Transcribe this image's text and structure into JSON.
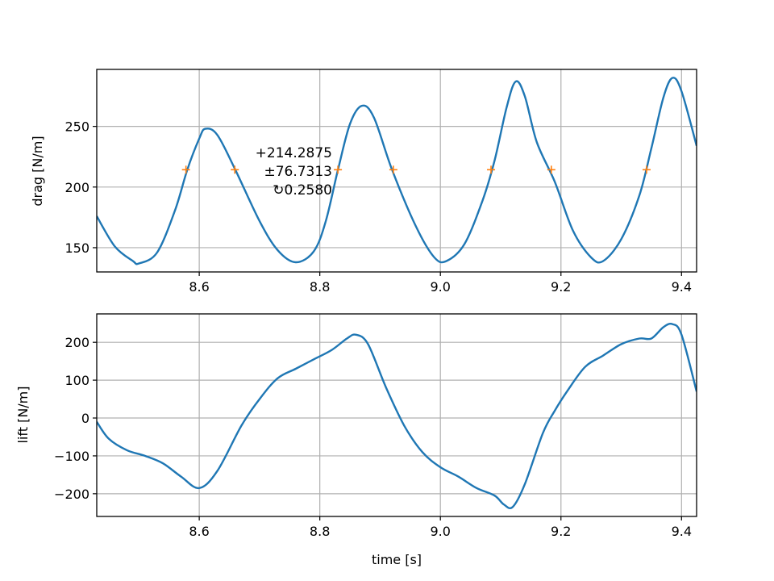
{
  "chart_data": [
    {
      "type": "line",
      "xlabel": "",
      "ylabel": "drag [N/m]",
      "xlim": [
        8.43,
        9.425
      ],
      "ylim": [
        130,
        297
      ],
      "xticks": [
        "8.6",
        "8.8",
        "9.0",
        "9.2",
        "9.4"
      ],
      "yticks": [
        "150",
        "200",
        "250"
      ],
      "grid": true,
      "colors": {
        "line": "#1f77b4",
        "markers": "#ff7f0e"
      },
      "series": [
        {
          "x": [
            8.43,
            8.46,
            8.49,
            8.5,
            8.53,
            8.56,
            8.58,
            8.6,
            8.61,
            8.63,
            8.66,
            8.7,
            8.73,
            8.76,
            8.79,
            8.81,
            8.83,
            8.85,
            8.87,
            8.89,
            8.92,
            8.96,
            8.99,
            9.01,
            9.04,
            9.07,
            9.09,
            9.11,
            9.125,
            9.14,
            9.16,
            9.19,
            9.22,
            9.25,
            9.27,
            9.3,
            9.33,
            9.35,
            9.37,
            9.385,
            9.4,
            9.425
          ],
          "y": [
            176,
            151,
            139,
            137,
            146,
            181,
            214,
            240,
            248,
            243,
            214,
            172,
            148,
            138,
            147,
            172,
            214,
            252,
            267,
            257,
            214,
            167,
            142,
            139,
            153,
            189,
            222,
            266,
            287,
            275,
            237,
            204,
            164,
            142,
            139,
            157,
            193,
            232,
            274,
            290,
            279,
            234
          ]
        },
        {
          "type": "scatter",
          "marker": "+",
          "x": [
            8.578,
            8.659,
            8.83,
            8.922,
            9.084,
            9.184,
            9.342
          ],
          "y": [
            214.2875,
            214.2875,
            214.2875,
            214.2875,
            214.2875,
            214.2875,
            214.2875
          ]
        }
      ],
      "annotations": [
        "+214.2875",
        "±76.7313",
        "↻0.2580"
      ]
    },
    {
      "type": "line",
      "xlabel": "time [s]",
      "ylabel": "lift [N/m]",
      "xlim": [
        8.43,
        9.425
      ],
      "ylim": [
        -260,
        275
      ],
      "xticks": [
        "8.6",
        "8.8",
        "9.0",
        "9.2",
        "9.4"
      ],
      "yticks": [
        "−200",
        "−100",
        "0",
        "100",
        "200"
      ],
      "grid": true,
      "colors": {
        "line": "#1f77b4"
      },
      "series": [
        {
          "x": [
            8.43,
            8.45,
            8.48,
            8.51,
            8.54,
            8.57,
            8.6,
            8.63,
            8.67,
            8.7,
            8.73,
            8.76,
            8.79,
            8.82,
            8.845,
            8.86,
            8.88,
            8.91,
            8.94,
            8.97,
            9.0,
            9.03,
            9.06,
            9.09,
            9.105,
            9.12,
            9.14,
            9.17,
            9.19,
            9.21,
            9.24,
            9.27,
            9.3,
            9.33,
            9.35,
            9.37,
            9.385,
            9.4,
            9.425
          ],
          "y": [
            -10,
            -55,
            -85,
            -100,
            -120,
            -155,
            -185,
            -140,
            -20,
            50,
            105,
            130,
            155,
            180,
            210,
            220,
            195,
            80,
            -20,
            -90,
            -130,
            -155,
            -185,
            -205,
            -228,
            -235,
            -175,
            -40,
            20,
            70,
            135,
            165,
            195,
            210,
            210,
            240,
            248,
            220,
            70
          ]
        }
      ]
    }
  ]
}
